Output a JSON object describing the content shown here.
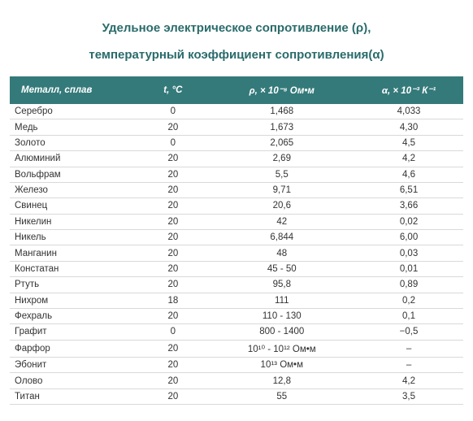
{
  "title_line1": "Удельное электрическое сопротивление (ρ),",
  "title_line2": "температурный коэффициент сопротивления(α)",
  "table": {
    "header_bg": "#357a7a",
    "header_fg": "#ffffff",
    "row_border": "#d9d9d9",
    "columns": [
      "Металл, сплав",
      "t, °С",
      "ρ, × 10⁻⁸ Ом•м",
      "α, × 10⁻³ К⁻¹"
    ],
    "col_widths_pct": [
      28,
      16,
      32,
      24
    ],
    "col_align": [
      "left",
      "center",
      "center",
      "center"
    ],
    "rows": [
      {
        "name": "Серебро",
        "t": "0",
        "rho": "1,468",
        "alpha": "4,033"
      },
      {
        "name": "Медь",
        "t": "20",
        "rho": "1,673",
        "alpha": "4,30"
      },
      {
        "name": "Золото",
        "t": "0",
        "rho": "2,065",
        "alpha": "4,5"
      },
      {
        "name": "Алюминий",
        "t": "20",
        "rho": "2,69",
        "alpha": "4,2"
      },
      {
        "name": "Вольфрам",
        "t": "20",
        "rho": "5,5",
        "alpha": "4,6"
      },
      {
        "name": "Железо",
        "t": "20",
        "rho": "9,71",
        "alpha": "6,51"
      },
      {
        "name": "Свинец",
        "t": "20",
        "rho": "20,6",
        "alpha": "3,66"
      },
      {
        "name": "Никелин",
        "t": "20",
        "rho": "42",
        "alpha": "0,02"
      },
      {
        "name": "Никель",
        "t": "20",
        "rho": "6,844",
        "alpha": "6,00"
      },
      {
        "name": "Манганин",
        "t": "20",
        "rho": "48",
        "alpha": "0,03"
      },
      {
        "name": "Констатан",
        "t": "20",
        "rho": "45 - 50",
        "alpha": "0,01"
      },
      {
        "name": "Ртуть",
        "t": "20",
        "rho": "95,8",
        "alpha": "0,89"
      },
      {
        "name": "Нихром",
        "t": "18",
        "rho": "111",
        "alpha": "0,2"
      },
      {
        "name": "Фехраль",
        "t": "20",
        "rho": "110 - 130",
        "alpha": "0,1"
      },
      {
        "name": "Графит",
        "t": "0",
        "rho": "800 - 1400",
        "alpha": "−0,5"
      },
      {
        "name": "Фарфор",
        "t": "20",
        "rho": "10¹⁰ - 10¹² Ом•м",
        "alpha": "–"
      },
      {
        "name": "Эбонит",
        "t": "20",
        "rho": "10¹³ Ом•м",
        "alpha": "–"
      },
      {
        "name": "Олово",
        "t": "20",
        "rho": "12,8",
        "alpha": "4,2"
      },
      {
        "name": "Титан",
        "t": "20",
        "rho": "55",
        "alpha": "3,5"
      }
    ]
  }
}
